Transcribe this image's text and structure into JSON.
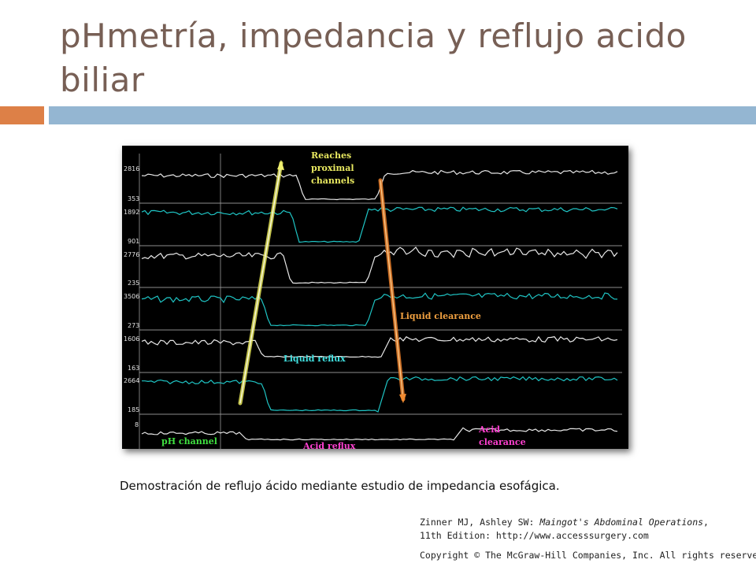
{
  "slide": {
    "title": "pHmetría, impedancia y reflujo acido biliar",
    "caption": "Demostración de reflujo ácido mediante estudio de impedancia esofágica.",
    "accent_colors": {
      "title": "#775f55",
      "orange_bar": "#dd8047",
      "blue_bar": "#94b6d2"
    }
  },
  "figure": {
    "channel_labels": [
      {
        "top": "2816",
        "bottom": "353"
      },
      {
        "top": "1892",
        "bottom": "901"
      },
      {
        "top": "2776",
        "bottom": "235"
      },
      {
        "top": "3506",
        "bottom": "273"
      },
      {
        "top": "1606",
        "bottom": "163"
      },
      {
        "top": "2664",
        "bottom": "185"
      },
      {
        "top": "8",
        "bottom": ""
      }
    ],
    "annotations": {
      "reaches": "Reaches",
      "proximal": "proximal",
      "channels": "channels",
      "liquid_clearance": "Liquid clearance",
      "liquid_reflux": "Liquid reflux",
      "ph_channel": "pH channel",
      "acid_reflux": "Acid reflux",
      "acid": "Acid",
      "clearance": "clearance"
    },
    "colors": {
      "white_trace": "#e8e8e8",
      "cyan_trace": "#1fc4c4",
      "yellow_arrow": "#e6e65a",
      "orange_arrow": "#e07a2a",
      "label_orange": "#f0a040",
      "label_cyan": "#40e0e0",
      "label_green": "#40e040",
      "label_pink": "#ff40d0",
      "label_yellow": "#e8e860"
    }
  },
  "credit": {
    "line1_authors": "Zinner MJ, Ashley SW: ",
    "line1_book": "Maingot's Abdominal Operations",
    "line1_end": ",",
    "line2": "11th Edition: http://www.accesssurgery.com",
    "line3": "Copyright © The McGraw-Hill Companies, Inc. All rights reserved."
  }
}
